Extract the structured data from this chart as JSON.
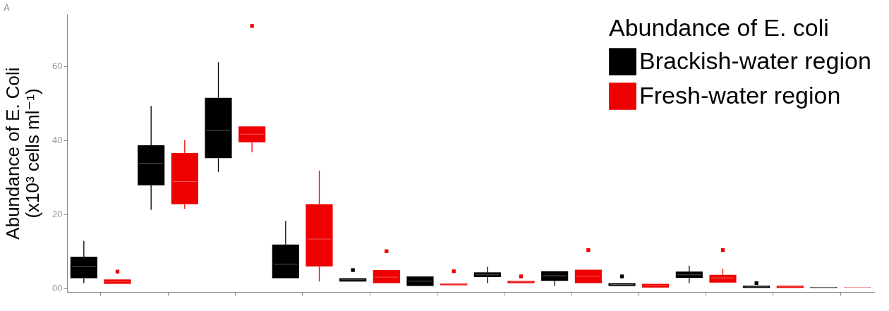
{
  "chart_data": {
    "type": "box",
    "title": "A",
    "ylabel": "Abundance of E. Coli\n(x10³ cells ml⁻¹)",
    "legend_title": "Abundance of E. coli",
    "categories": [
      null,
      null,
      null,
      null,
      null,
      null,
      null,
      null,
      null,
      null,
      null,
      null
    ],
    "ylim": [
      -1,
      74
    ],
    "yticks": [
      {
        "value": 0,
        "label": "00"
      },
      20,
      40,
      60
    ],
    "grid": false,
    "legend": "top right",
    "tick_labels": "y",
    "series": [
      {
        "name": "Brackish-water region",
        "color": "#000000",
        "boxes": [
          {
            "low": 1.4,
            "q1": 2.7,
            "median": 5.9,
            "q3": 8.5,
            "high": 12.8
          },
          {
            "low": 21.2,
            "q1": 27.8,
            "median": 33.7,
            "q3": 38.6,
            "high": 49.2
          },
          {
            "low": 31.4,
            "q1": 35.1,
            "median": 42.7,
            "q3": 51.4,
            "high": 61
          },
          {
            "low": 2.7,
            "q1": 2.7,
            "median": 6.5,
            "q3": 11.8,
            "high": 18.2
          },
          {
            "low": 1.8,
            "q1": 1.8,
            "median": 2.3,
            "q3": 2.7,
            "high": 2.7,
            "outliers": [
              4.9
            ]
          },
          {
            "low": 0.6,
            "q1": 0.6,
            "median": 1.9,
            "q3": 3.2,
            "high": 3.2
          },
          {
            "low": 1.4,
            "q1": 3.0,
            "median": 3.6,
            "q3": 4.3,
            "high": 5.8
          },
          {
            "low": 0.6,
            "q1": 2.0,
            "median": 3.4,
            "q3": 4.6,
            "high": 4.6
          },
          {
            "low": 0.6,
            "q1": 0.6,
            "median": 1.0,
            "q3": 1.4,
            "high": 1.4,
            "outliers": [
              3.2
            ]
          },
          {
            "low": 1.4,
            "q1": 2.8,
            "median": 3.6,
            "q3": 4.5,
            "high": 6.1
          },
          {
            "low": 0.1,
            "q1": 0.1,
            "median": 0.4,
            "q3": 0.7,
            "high": 0.7,
            "outliers": [
              1.4
            ]
          },
          {
            "low": 0.1,
            "q1": 0.1,
            "median": 0.2,
            "q3": 0.3,
            "high": 0.3
          }
        ]
      },
      {
        "name": "Fresh-water region",
        "color": "#ee0000",
        "boxes": [
          {
            "low": 1.2,
            "q1": 1.2,
            "median": 1.8,
            "q3": 2.4,
            "high": 2.4,
            "outliers": [
              4.5
            ]
          },
          {
            "low": 21.4,
            "q1": 22.7,
            "median": 28.8,
            "q3": 36.5,
            "high": 40
          },
          {
            "low": 36.7,
            "q1": 39.4,
            "median": 41.6,
            "q3": 43.7,
            "high": 43.7,
            "outliers": [
              70.8
            ]
          },
          {
            "low": 1.8,
            "q1": 5.9,
            "median": 13.3,
            "q3": 22.7,
            "high": 31.8
          },
          {
            "low": 1.4,
            "q1": 1.4,
            "median": 3,
            "q3": 4.9,
            "high": 4.9,
            "outliers": [
              10
            ]
          },
          {
            "low": 0.8,
            "q1": 0.8,
            "median": 1.1,
            "q3": 1.3,
            "high": 1.3,
            "outliers": [
              4.6
            ]
          },
          {
            "low": 1.4,
            "q1": 1.4,
            "median": 1.7,
            "q3": 2.0,
            "high": 2.0,
            "outliers": [
              3.2
            ]
          },
          {
            "low": 1.4,
            "q1": 1.4,
            "median": 3.3,
            "q3": 5.0,
            "high": 5.0,
            "outliers": [
              10.3
            ]
          },
          {
            "low": 0.2,
            "q1": 0.2,
            "median": 0.7,
            "q3": 1.2,
            "high": 1.2
          },
          {
            "low": 1.5,
            "q1": 1.5,
            "median": 2.8,
            "q3": 3.6,
            "high": 5.3,
            "outliers": [
              10.3
            ]
          },
          {
            "low": 0.1,
            "q1": 0.1,
            "median": 0.4,
            "q3": 0.7,
            "high": 0.7
          },
          {
            "low": 0.1,
            "q1": 0.15,
            "median": 0.2,
            "q3": 0.25,
            "high": 0.3
          }
        ]
      }
    ]
  }
}
